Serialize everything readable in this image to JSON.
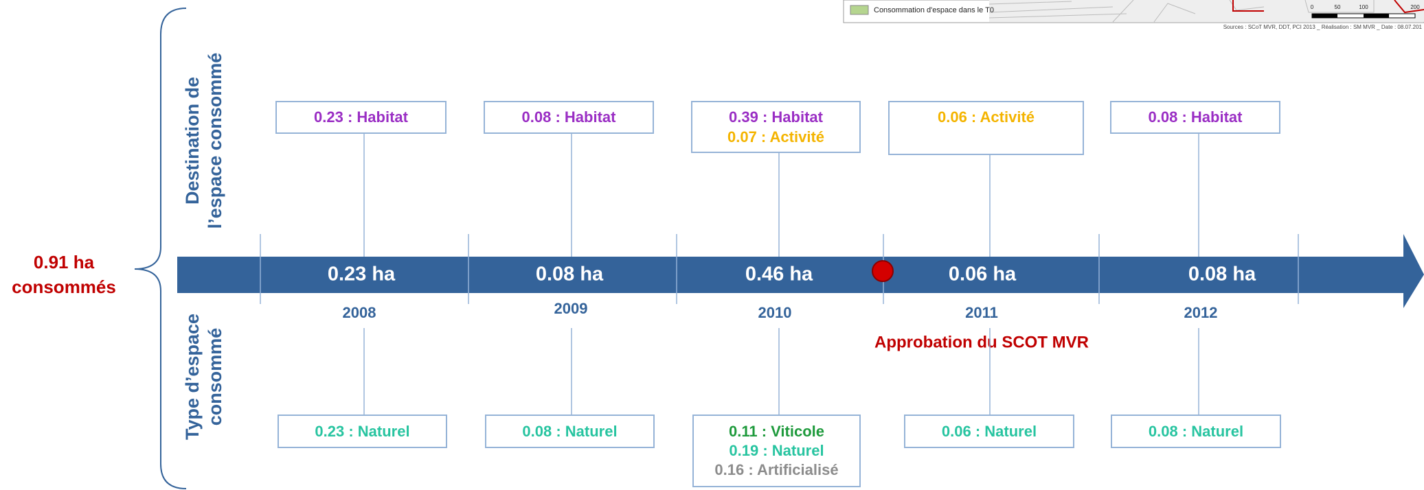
{
  "map_legend": {
    "item": "Consommation d'espace dans le T0",
    "sources": "Sources : SCoT MVR, DDT, PCI 2013 _ Réalisation : SM MVR _ Date : 08.07.201",
    "scale": [
      "0",
      "50",
      "100",
      "200"
    ],
    "swatch_color": "#b5d58f"
  },
  "total": [
    "0.91 ha",
    "consommés"
  ],
  "side_labels": {
    "destination": [
      "Destination de",
      "l’espace consommé"
    ],
    "type": [
      "Type d’espace",
      "consommé"
    ]
  },
  "milestone": "Approbation du SCOT MVR",
  "colors": {
    "arrow": "#34639a",
    "box_border": "#95b3d7",
    "year": "#34639a",
    "accent": "#c00000"
  },
  "years": [
    {
      "year": "2008",
      "area": "0.23 ha",
      "destination": [
        {
          "text": "0.23 : Habitat",
          "color": "#9a2ec4"
        }
      ],
      "type": [
        {
          "text": "0.23 : Naturel",
          "color": "#27c4a0"
        }
      ]
    },
    {
      "year": "2009",
      "area": "0.08 ha",
      "destination": [
        {
          "text": "0.08 : Habitat",
          "color": "#9a2ec4"
        }
      ],
      "type": [
        {
          "text": "0.08 : Naturel",
          "color": "#27c4a0"
        }
      ]
    },
    {
      "year": "2010",
      "area": "0.46 ha",
      "destination": [
        {
          "text": "0.39 : Habitat",
          "color": "#9a2ec4"
        },
        {
          "text": "0.07 : Activité",
          "color": "#f4b400"
        }
      ],
      "type": [
        {
          "text": "0.11 : Viticole",
          "color": "#1e9a3c"
        },
        {
          "text": "0.19 : Naturel",
          "color": "#27c4a0"
        },
        {
          "text": "0.16 : Artificialisé",
          "color": "#8c8c8c"
        }
      ]
    },
    {
      "year": "2011",
      "area": "0.06 ha",
      "destination": [
        {
          "text": "0.06 : Activité",
          "color": "#f4b400"
        }
      ],
      "type": [
        {
          "text": "0.06 : Naturel",
          "color": "#27c4a0"
        }
      ]
    },
    {
      "year": "2012",
      "area": "0.08 ha",
      "destination": [
        {
          "text": "0.08 : Habitat",
          "color": "#9a2ec4"
        }
      ],
      "type": [
        {
          "text": "0.08 : Naturel",
          "color": "#27c4a0"
        }
      ]
    }
  ]
}
